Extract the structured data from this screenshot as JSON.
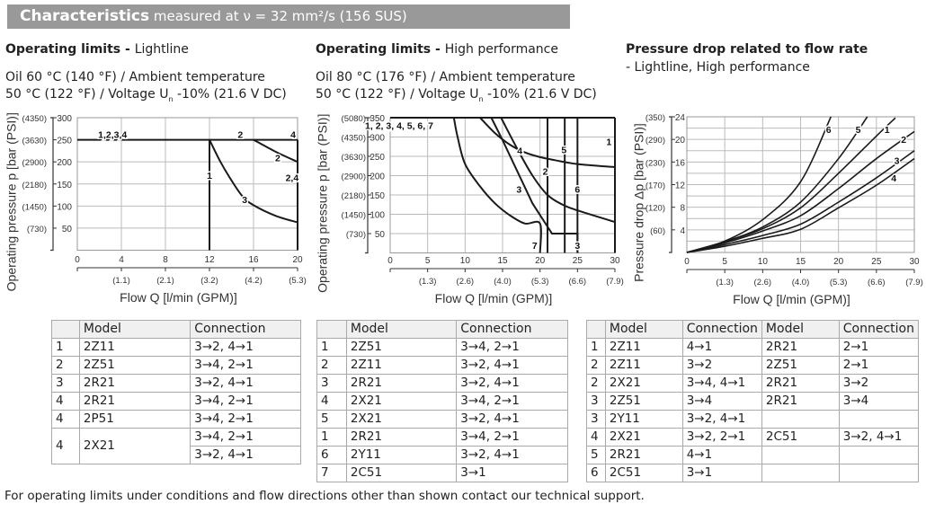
{
  "header": {
    "title": "Characteristics",
    "subtitle": " measured at ν = 32 mm²/s (156 SUS)"
  },
  "sections": [
    {
      "bold": "Operating limits - ",
      "rest": "Lightline",
      "cond1": "Oil 60 °C (140 °F) / Ambient temperature",
      "cond2a": "50 °C (122 °F) / Voltage U",
      "cond2sub": "n",
      "cond2b": " -10% (21.6 V DC)"
    },
    {
      "bold": "Operating limits - ",
      "rest": "High performance",
      "cond1": "Oil 80 °C (176 °F) / Ambient temperature",
      "cond2a": "50 °C (122 °F) / Voltage U",
      "cond2sub": "n",
      "cond2b": " -10% (21.6 V DC)"
    },
    {
      "bold": "Pressure drop related to flow rate",
      "rest": "- Lightline, High performance"
    }
  ],
  "chart_data": [
    {
      "type": "line",
      "xlabel": "Flow Q [l/min (GPM)]",
      "ylabel": "Operating pressure p [bar (PSI)]",
      "xlim": [
        0,
        20
      ],
      "ylim": [
        0,
        300
      ],
      "grid": true,
      "xticks": [
        "0",
        "4",
        "8",
        "12",
        "16",
        "20"
      ],
      "xtick_values": [
        0,
        4,
        8,
        12,
        16,
        20
      ],
      "xticks_gpm": [
        "",
        "(1.1)",
        "(2.1)",
        "(3.2)",
        "(4.2)",
        "(5.3)"
      ],
      "yticks": [
        "50",
        "100",
        "150",
        "200",
        "250",
        "300"
      ],
      "ytick_values": [
        50,
        100,
        150,
        200,
        250,
        300
      ],
      "yticks_psi": [
        "(730)",
        "(1450)",
        "(2180)",
        "(2900)",
        "(3630)",
        "(4350)"
      ],
      "series": [
        {
          "name": "1,2,3,4",
          "points": [
            [
              0,
              250
            ],
            [
              20,
              250
            ]
          ]
        },
        {
          "name": "1",
          "points": [
            [
              12,
              250
            ],
            [
              12,
              0
            ]
          ]
        },
        {
          "name": "3",
          "points": [
            [
              12,
              250
            ],
            [
              13,
              200
            ],
            [
              14,
              158
            ],
            [
              15,
              122
            ],
            [
              16,
              102
            ],
            [
              18,
              78
            ],
            [
              20,
              63
            ]
          ],
          "smooth": true
        },
        {
          "name": "2",
          "points": [
            [
              16,
              250
            ],
            [
              18,
              223
            ],
            [
              20,
              200
            ]
          ],
          "smooth": true
        },
        {
          "name": "2,4",
          "points": [
            [
              20,
              250
            ],
            [
              20,
              0
            ]
          ]
        }
      ],
      "labels": [
        {
          "text": "1,2,3,4",
          "x": 3.2,
          "y": 262
        },
        {
          "text": "2",
          "x": 14.8,
          "y": 262
        },
        {
          "text": "4",
          "x": 19.6,
          "y": 262
        },
        {
          "text": "2",
          "x": 18.2,
          "y": 210
        },
        {
          "text": "1",
          "x": 12,
          "y": 170
        },
        {
          "text": "2,4",
          "x": 19.5,
          "y": 165
        },
        {
          "text": "3",
          "x": 15.2,
          "y": 115
        }
      ]
    },
    {
      "type": "line",
      "xlabel": "Flow Q [l/min (GPM)]",
      "ylabel": "Operating pressure p [bar (PSI)]",
      "xlim": [
        0,
        30
      ],
      "ylim": [
        0,
        350
      ],
      "grid": true,
      "xticks": [
        "0",
        "5",
        "10",
        "15",
        "20",
        "25",
        "30"
      ],
      "xtick_values": [
        0,
        5,
        10,
        15,
        20,
        25,
        30
      ],
      "xticks_gpm": [
        "",
        "(1.3)",
        "(2.6)",
        "(4.0)",
        "(5.3)",
        "(6.6)",
        "(7.9)"
      ],
      "yticks": [
        "50",
        "100",
        "150",
        "200",
        "250",
        "300",
        "350"
      ],
      "ytick_values": [
        50,
        100,
        150,
        200,
        250,
        300,
        350
      ],
      "yticks_psi": [
        "(730)",
        "(1450)",
        "(2180)",
        "(2900)",
        "(3630)",
        "(4350)",
        "(5080)"
      ],
      "series": [
        {
          "name": "1, 2, 3, 4, 5, 6, 7",
          "points": [
            [
              0,
              350
            ],
            [
              30,
              350
            ]
          ]
        },
        {
          "name": "7",
          "points": [
            [
              8.5,
              350
            ],
            [
              9,
              300
            ],
            [
              10,
              230
            ],
            [
              12,
              172
            ],
            [
              14,
              128
            ],
            [
              16,
              97
            ],
            [
              18,
              76
            ],
            [
              20,
              76
            ],
            [
              20,
              0
            ]
          ],
          "smooth": true
        },
        {
          "name": "3",
          "points": [
            [
              13.5,
              350
            ],
            [
              15,
              292
            ],
            [
              17,
              210
            ],
            [
              19,
              128
            ],
            [
              21.6,
              50
            ],
            [
              25,
              50
            ],
            [
              25,
              0
            ]
          ]
        },
        {
          "name": "",
          "points": [
            [
              14.8,
              350
            ],
            [
              17,
              268
            ],
            [
              19,
              200
            ],
            [
              21,
              150
            ],
            [
              23,
              125
            ],
            [
              25,
              110
            ],
            [
              30,
              80
            ]
          ],
          "smooth": true
        },
        {
          "name": "4",
          "points": [
            [
              12,
              350
            ],
            [
              14,
              310
            ],
            [
              16,
              280
            ],
            [
              18,
              260
            ],
            [
              20,
              248
            ],
            [
              22,
              240
            ],
            [
              25,
              230
            ],
            [
              30,
              222
            ]
          ],
          "smooth": true
        },
        {
          "name": "2",
          "points": [
            [
              21,
              350
            ],
            [
              21,
              0
            ]
          ]
        },
        {
          "name": "5",
          "points": [
            [
              23.3,
              350
            ],
            [
              23.3,
              0
            ]
          ]
        },
        {
          "name": "6",
          "points": [
            [
              25,
              350
            ],
            [
              25,
              0
            ]
          ]
        },
        {
          "name": "1",
          "points": [
            [
              30,
              350
            ],
            [
              30,
              0
            ]
          ]
        }
      ],
      "labels": [
        {
          "text": "1, 2, 3, 4, 5, 6, 7",
          "x": 1.2,
          "y": 330
        },
        {
          "text": "4",
          "x": 17.3,
          "y": 265
        },
        {
          "text": "5",
          "x": 23.2,
          "y": 268
        },
        {
          "text": "1",
          "x": 29.2,
          "y": 288
        },
        {
          "text": "2",
          "x": 20.7,
          "y": 212
        },
        {
          "text": "3",
          "x": 17.2,
          "y": 165
        },
        {
          "text": "6",
          "x": 25,
          "y": 165
        },
        {
          "text": "7",
          "x": 19.3,
          "y": 20
        },
        {
          "text": "3",
          "x": 25,
          "y": 20
        }
      ]
    },
    {
      "type": "line",
      "xlabel": "Flow Q [l/min (GPM)]",
      "ylabel": "Pressure drop Δp [bar (PSI)]",
      "xlim": [
        0,
        30
      ],
      "ylim": [
        0,
        24
      ],
      "grid": true,
      "xticks": [
        "0",
        "5",
        "10",
        "15",
        "20",
        "25",
        "30"
      ],
      "xtick_values": [
        0,
        5,
        10,
        15,
        20,
        25,
        30
      ],
      "xticks_gpm": [
        "",
        "(1.3)",
        "(2.6)",
        "(4.0)",
        "(5.3)",
        "(6.6)",
        "(7.9)"
      ],
      "yticks": [
        "4",
        "8",
        "12",
        "16",
        "20",
        "24"
      ],
      "ytick_values": [
        4,
        8,
        12,
        16,
        20,
        24
      ],
      "yticks_psi": [
        "(60)",
        "(120)",
        "(170)",
        "(230)",
        "(290)",
        "(350)"
      ],
      "series": [
        {
          "name": "6",
          "points": [
            [
              0,
              0
            ],
            [
              5,
              2
            ],
            [
              10,
              5.8
            ],
            [
              15,
              12.5
            ],
            [
              19,
              24
            ]
          ],
          "smooth": true
        },
        {
          "name": "5",
          "points": [
            [
              0,
              0
            ],
            [
              5,
              1.9
            ],
            [
              10,
              4.5
            ],
            [
              15,
              8.9
            ],
            [
              20,
              16.6
            ],
            [
              23.8,
              24
            ]
          ],
          "smooth": true
        },
        {
          "name": "1",
          "points": [
            [
              0,
              0
            ],
            [
              5,
              1.9
            ],
            [
              10,
              4.2
            ],
            [
              15,
              7.9
            ],
            [
              20,
              14
            ],
            [
              25,
              20.6
            ],
            [
              27.5,
              23.8
            ]
          ],
          "smooth": true
        },
        {
          "name": "2",
          "points": [
            [
              0,
              0
            ],
            [
              5,
              1.7
            ],
            [
              10,
              3.8
            ],
            [
              15,
              6.5
            ],
            [
              20,
              11.3
            ],
            [
              25,
              16.6
            ],
            [
              30,
              21.4
            ]
          ],
          "smooth": true
        },
        {
          "name": "3",
          "points": [
            [
              0,
              0
            ],
            [
              5,
              1.4
            ],
            [
              10,
              3
            ],
            [
              15,
              5
            ],
            [
              20,
              8.9
            ],
            [
              25,
              13.2
            ],
            [
              30,
              18
            ]
          ],
          "smooth": true
        },
        {
          "name": "4",
          "points": [
            [
              0,
              0
            ],
            [
              5,
              1.1
            ],
            [
              10,
              2.5
            ],
            [
              15,
              4.1
            ],
            [
              20,
              7.9
            ],
            [
              25,
              11.9
            ],
            [
              30,
              16.6
            ]
          ],
          "smooth": true
        }
      ],
      "labels": [
        {
          "text": "6",
          "x": 18.7,
          "y": 21.8
        },
        {
          "text": "5",
          "x": 22.6,
          "y": 21.8
        },
        {
          "text": "1",
          "x": 26.4,
          "y": 21.8
        },
        {
          "text": "2",
          "x": 28.6,
          "y": 20
        },
        {
          "text": "3",
          "x": 27.7,
          "y": 16.3
        },
        {
          "text": "4",
          "x": 27.3,
          "y": 13.2
        }
      ]
    }
  ],
  "tables": [
    {
      "headers": [
        "",
        "Model",
        "Connection"
      ],
      "rows": [
        [
          "1",
          "2Z11",
          "3→2, 4→1"
        ],
        [
          "2",
          "2Z51",
          "3→4, 2→1"
        ],
        [
          "3",
          "2R21",
          "3→2, 4→1"
        ],
        [
          "4",
          "2R21",
          "3→4, 2→1"
        ],
        [
          "4",
          "2P51",
          "3→4, 2→1"
        ],
        [
          "4",
          "2X21",
          "3→4, 2→1",
          "3→2, 4→1"
        ]
      ]
    },
    {
      "headers": [
        "",
        "Model",
        "Connection"
      ],
      "rows": [
        [
          "1",
          "2Z51",
          "3→4, 2→1"
        ],
        [
          "2",
          "2Z11",
          "3→2, 4→1"
        ],
        [
          "3",
          "2R21",
          "3→2, 4→1"
        ],
        [
          "4",
          "2X21",
          "3→4, 2→1"
        ],
        [
          "5",
          "2X21",
          "3→2, 4→1"
        ],
        [
          "1",
          "2R21",
          "3→4, 2→1"
        ],
        [
          "6",
          "2Y11",
          "3→2, 4→1"
        ],
        [
          "7",
          "2C51",
          "3→1"
        ]
      ]
    },
    {
      "headers": [
        "",
        "Model",
        "Connection",
        "Model",
        "Connection"
      ],
      "rows": [
        [
          "1",
          "2Z11",
          "4→1",
          "2R21",
          "2→1"
        ],
        [
          "2",
          "2Z11",
          "3→2",
          "2Z51",
          "2→1"
        ],
        [
          "2",
          "2X21",
          "3→4, 4→1",
          "2R21",
          "3→2"
        ],
        [
          "3",
          "2Z51",
          "3→4",
          "2R21",
          "3→4"
        ],
        [
          "3",
          "2Y11",
          "3→2, 4→1",
          "",
          ""
        ],
        [
          "4",
          "2X21",
          "3→2, 2→1",
          "2C51",
          "3→2, 4→1"
        ],
        [
          "5",
          "2R21",
          "4→1",
          "",
          ""
        ],
        [
          "6",
          "2C51",
          "3→1",
          "",
          ""
        ]
      ]
    }
  ],
  "footer": "For operating limits under conditions and flow directions other than shown contact our technical support."
}
